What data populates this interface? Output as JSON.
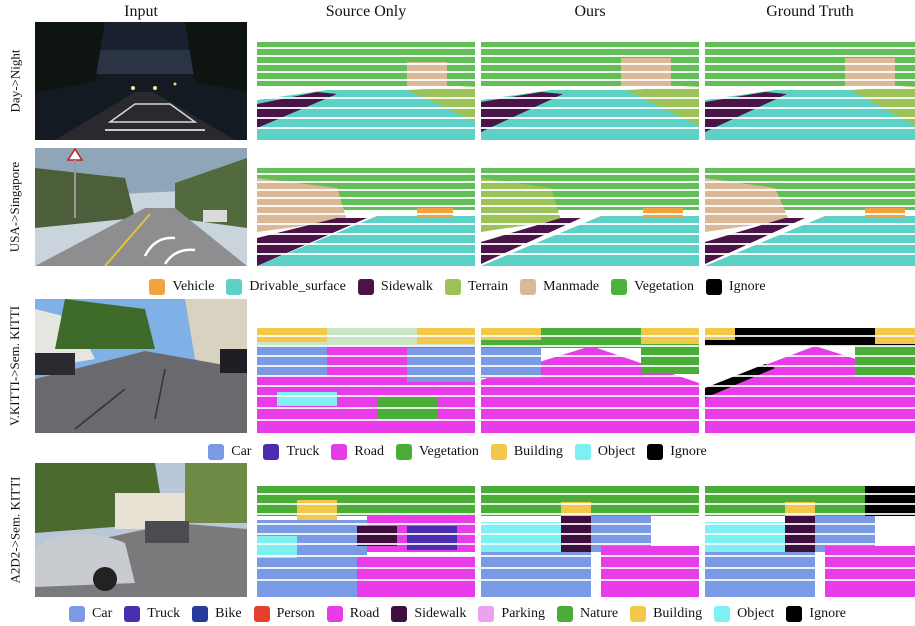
{
  "headers": [
    "Input",
    "Source Only",
    "Ours",
    "Ground Truth"
  ],
  "rows": [
    {
      "label": "Day->Night",
      "scene": "night"
    },
    {
      "label": "USA->Singapore",
      "scene": "street"
    },
    {
      "label": "V.KITTI->Sem. KITTI",
      "scene": "kitti"
    },
    {
      "label": "A2D2->Sem. KITTI",
      "scene": "a2d2"
    }
  ],
  "legends": [
    [
      {
        "label": "Vehicle",
        "color": "#f2a23e"
      },
      {
        "label": "Drivable_surface",
        "color": "#5dd1c6"
      },
      {
        "label": "Sidewalk",
        "color": "#4a1448"
      },
      {
        "label": "Terrain",
        "color": "#9bc35a"
      },
      {
        "label": "Manmade",
        "color": "#dcb896"
      },
      {
        "label": "Vegetation",
        "color": "#49b33a"
      },
      {
        "label": "Ignore",
        "color": "#000000"
      }
    ],
    [
      {
        "label": "Car",
        "color": "#7a9ae6"
      },
      {
        "label": "Truck",
        "color": "#4a2db0"
      },
      {
        "label": "Road",
        "color": "#e83ce8"
      },
      {
        "label": "Vegetation",
        "color": "#4aad38"
      },
      {
        "label": "Building",
        "color": "#f2c84a"
      },
      {
        "label": "Object",
        "color": "#7ef0f2"
      },
      {
        "label": "Ignore",
        "color": "#000000"
      }
    ],
    [
      {
        "label": "Car",
        "color": "#7a9ae6"
      },
      {
        "label": "Truck",
        "color": "#4a2db0"
      },
      {
        "label": "Bike",
        "color": "#253a9a"
      },
      {
        "label": "Person",
        "color": "#e8402e"
      },
      {
        "label": "Road",
        "color": "#e83ce8"
      },
      {
        "label": "Sidewalk",
        "color": "#3e0f3e"
      },
      {
        "label": "Parking",
        "color": "#eea0ee"
      },
      {
        "label": "Nature",
        "color": "#4aad38"
      },
      {
        "label": "Building",
        "color": "#f2c84a"
      },
      {
        "label": "Object",
        "color": "#7ef0f2"
      },
      {
        "label": "Ignore",
        "color": "#000000"
      }
    ]
  ]
}
